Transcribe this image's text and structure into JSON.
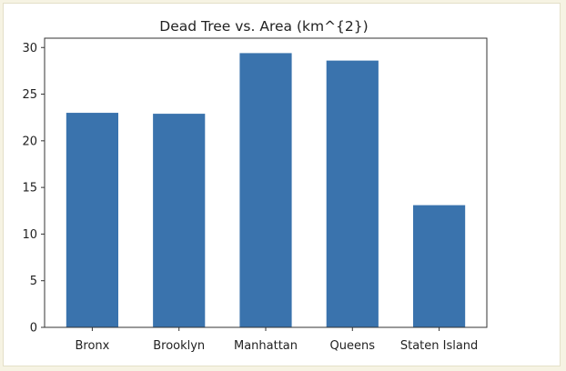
{
  "chart_data": {
    "type": "bar",
    "title": "Dead Tree vs. Area (km^{2})",
    "xlabel": "",
    "ylabel": "",
    "categories": [
      "Bronx",
      "Brooklyn",
      "Manhattan",
      "Queens",
      "Staten Island"
    ],
    "values": [
      23.0,
      22.9,
      29.4,
      28.6,
      13.1
    ],
    "ylim": [
      0,
      31
    ],
    "yticks": [
      "0",
      "5",
      "10",
      "15",
      "20",
      "25",
      "30"
    ],
    "bar_color": "#3a73ad",
    "grid": false,
    "legend": "none"
  }
}
